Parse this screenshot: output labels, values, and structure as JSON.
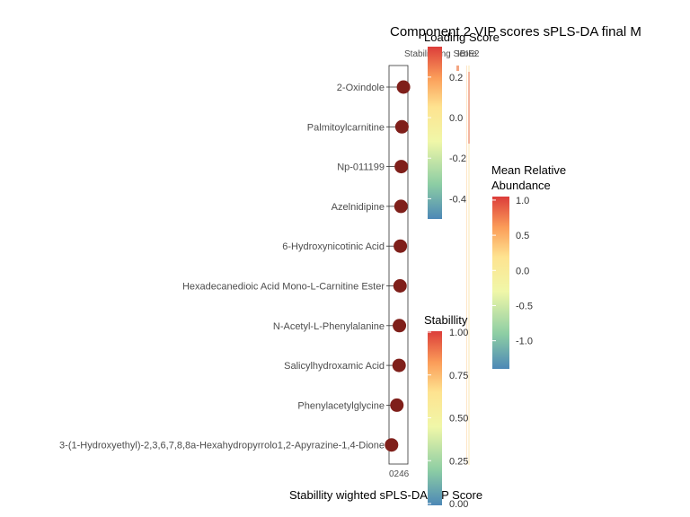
{
  "chart_data": {
    "type": "scatter",
    "title": "Component 2 VIP scores sPLS-DA final M",
    "xlabel": "Stabillity wighted sPLS-DA VIP Score",
    "x_ticks": [
      "0",
      "2",
      "4",
      "6"
    ],
    "x_tick_text": "0246",
    "xlim": [
      0,
      6
    ],
    "column_header": "Stabilinding Score",
    "column_header_suffix": "IBIE2",
    "categories": [
      "2-Oxindole",
      "Palmitoylcarnitine",
      "Np-011199",
      "Azelnidipine",
      "6-Hydroxynicotinic Acid",
      "Hexadecanedioic Acid Mono-L-Carnitine Ester",
      "N-Acetyl-L-Phenylalanine",
      "Salicylhydroxamic Acid",
      "Phenylacetylglycine",
      "3-(1-Hydroxyethyl)-2,3,6,7,8,8a-Hexahydropyrrolo1,2-Apyrazine-1,4-Dione"
    ],
    "values": [
      4.6,
      4.1,
      3.9,
      3.8,
      3.6,
      3.5,
      3.3,
      3.2,
      2.5,
      0.8
    ],
    "point_color": "#7f1f1a",
    "legends": [
      {
        "title": "Loading Score",
        "ticks": [
          "0.2",
          "0.0",
          "-0.2",
          "-0.4"
        ],
        "range": [
          -0.5,
          0.35
        ]
      },
      {
        "title_line1": "Mean Relative",
        "title_line2": "Abundance",
        "ticks": [
          "1.0",
          "0.5",
          "0.0",
          "-0.5",
          "-1.0"
        ],
        "range": [
          -1.4,
          1.05
        ]
      },
      {
        "title": "Stabillity",
        "ticks": [
          "1.00",
          "0.75",
          "0.50",
          "0.25",
          "0.00"
        ],
        "range": [
          0,
          1
        ]
      }
    ],
    "colormap": [
      "#5e8fbd",
      "#9ed3a4",
      "#e6f59a",
      "#fee08b",
      "#fdae61",
      "#e0483a"
    ]
  }
}
